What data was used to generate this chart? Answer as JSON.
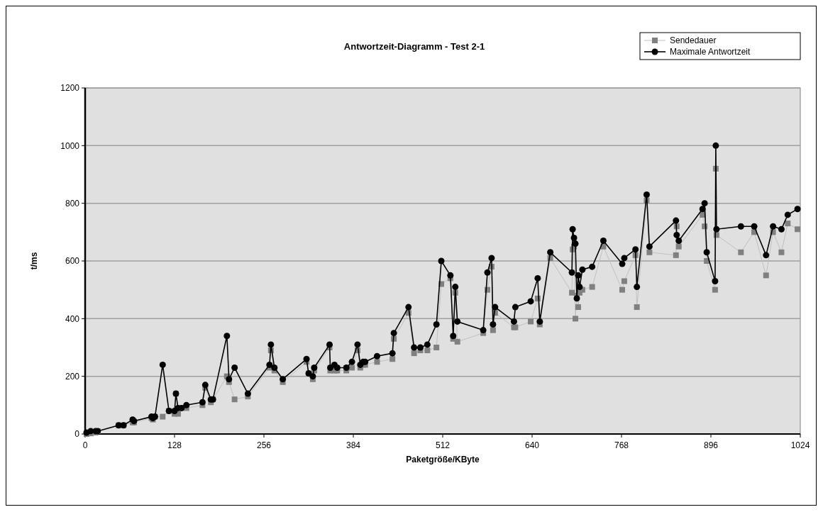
{
  "chart_data": {
    "type": "line",
    "title": "Antwortzeit-Diagramm - Test 2-1",
    "xlabel": "Paketgröße/KByte",
    "ylabel": "t/ms",
    "x": [
      2,
      8,
      15,
      18,
      48,
      55,
      68,
      70,
      95,
      97,
      100,
      111,
      120,
      128,
      130,
      133,
      138,
      145,
      168,
      172,
      180,
      183,
      203,
      206,
      214,
      233,
      264,
      266,
      271,
      283,
      317,
      320,
      326,
      328,
      350,
      351,
      357,
      361,
      374,
      382,
      390,
      394,
      398,
      401,
      418,
      440,
      442,
      463,
      471,
      480,
      490,
      503,
      510,
      523,
      527,
      530,
      533,
      570,
      576,
      582,
      584,
      587,
      614,
      616,
      638,
      648,
      651,
      666,
      697,
      698,
      700,
      702,
      704,
      706,
      708,
      712,
      726,
      742,
      769,
      772,
      788,
      790,
      804,
      808,
      846,
      847,
      850,
      884,
      887,
      890,
      902,
      903,
      904,
      939,
      958,
      975,
      985,
      997,
      1006,
      1020
    ],
    "series": [
      {
        "name": "Sendedauer",
        "color": "#808080",
        "marker": "square",
        "values": [
          0,
          2,
          5,
          10,
          30,
          30,
          40,
          40,
          55,
          50,
          60,
          60,
          80,
          70,
          140,
          70,
          90,
          90,
          100,
          160,
          110,
          120,
          200,
          180,
          120,
          130,
          230,
          290,
          220,
          180,
          250,
          210,
          190,
          220,
          300,
          220,
          220,
          220,
          220,
          230,
          290,
          230,
          240,
          240,
          250,
          260,
          330,
          420,
          280,
          290,
          290,
          300,
          520,
          540,
          330,
          490,
          320,
          350,
          500,
          580,
          360,
          420,
          370,
          370,
          390,
          470,
          380,
          610,
          490,
          640,
          650,
          400,
          480,
          440,
          490,
          500,
          510,
          650,
          500,
          530,
          620,
          440,
          810,
          630,
          620,
          720,
          650,
          760,
          720,
          600,
          500,
          920,
          690,
          630,
          700,
          550,
          700,
          630,
          730,
          710
        ]
      },
      {
        "name": "Maximale Antwortzeit",
        "color": "#000000",
        "marker": "circle",
        "values": [
          5,
          10,
          10,
          10,
          30,
          30,
          50,
          45,
          60,
          55,
          60,
          240,
          80,
          80,
          140,
          90,
          90,
          100,
          110,
          170,
          120,
          120,
          340,
          190,
          230,
          140,
          240,
          310,
          230,
          190,
          260,
          210,
          200,
          230,
          310,
          230,
          240,
          230,
          230,
          250,
          310,
          240,
          250,
          250,
          270,
          280,
          350,
          440,
          300,
          300,
          310,
          380,
          600,
          550,
          340,
          510,
          390,
          360,
          560,
          610,
          380,
          440,
          390,
          440,
          460,
          540,
          390,
          630,
          560,
          710,
          680,
          660,
          470,
          550,
          510,
          570,
          580,
          670,
          590,
          610,
          640,
          510,
          830,
          650,
          740,
          690,
          670,
          780,
          800,
          630,
          530,
          1000,
          710,
          720,
          720,
          620,
          720,
          710,
          760,
          780
        ]
      }
    ],
    "xlim": [
      0,
      1024
    ],
    "xticks": [
      0,
      128,
      256,
      384,
      512,
      640,
      768,
      896,
      1024
    ],
    "ylim": [
      0,
      1200
    ],
    "yticks": [
      0,
      200,
      400,
      600,
      800,
      1000,
      1200
    ],
    "grid": "y",
    "legend": "top right",
    "line_style": "solid"
  }
}
